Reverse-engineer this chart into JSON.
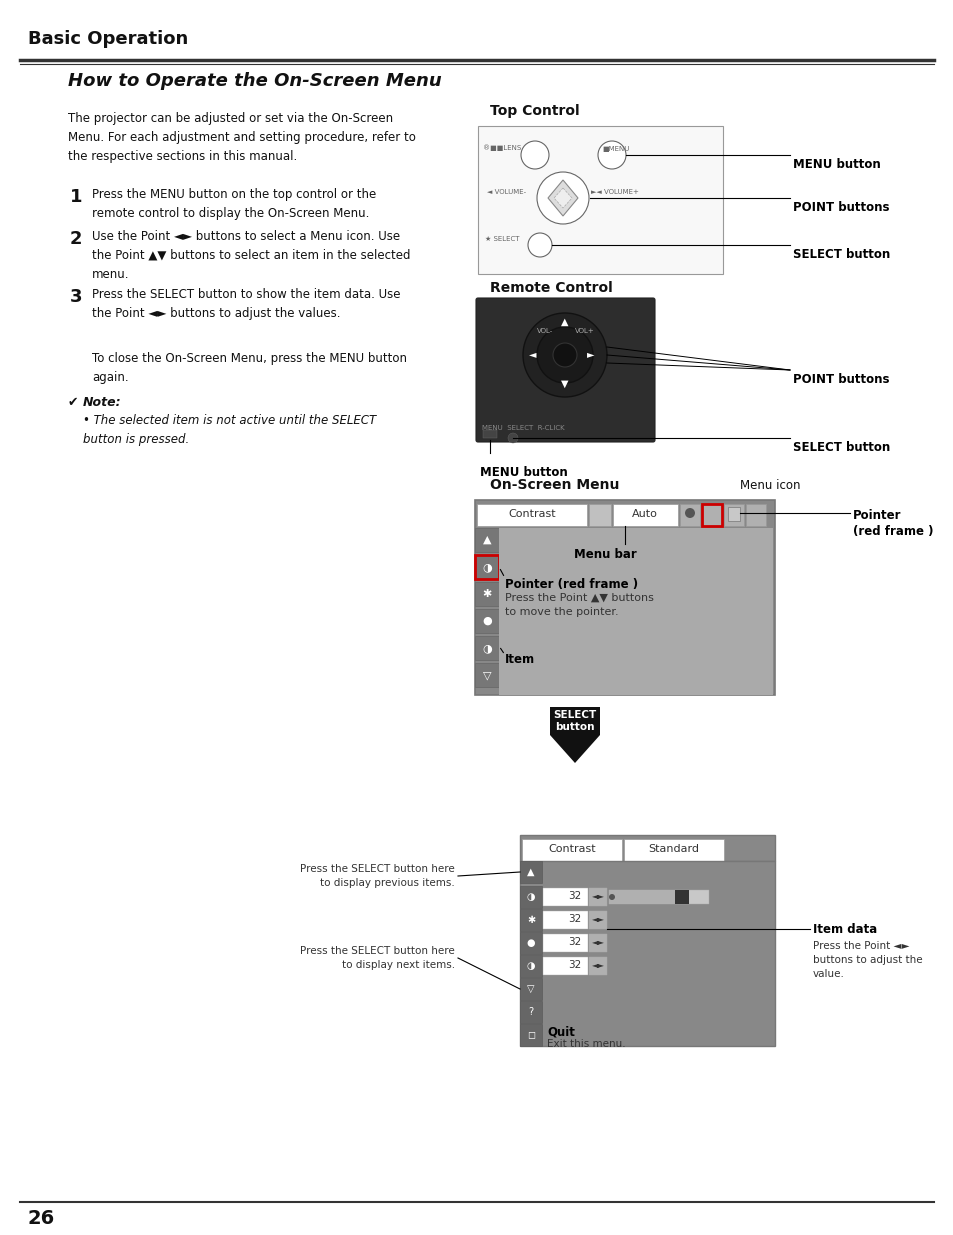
{
  "title": "Basic Operation",
  "subtitle": "How to Operate the On-Screen Menu",
  "bg_color": "#ffffff",
  "text_color": "#000000",
  "body_text": "The projector can be adjusted or set via the On-Screen\nMenu. For each adjustment and setting procedure, refer to\nthe respective sections in this manual.",
  "step1": "Press the MENU button on the top control or the\nremote control to display the On-Screen Menu.",
  "step2": "Use the Point ◄► buttons to select a Menu icon. Use\nthe Point ▲▼ buttons to select an item in the selected\nmenu.",
  "step3": "Press the SELECT button to show the item data. Use\nthe Point ◄► buttons to adjust the values.",
  "close_text": "To close the On-Screen Menu, press the MENU button\nagain.",
  "note_text": "Note:",
  "note_bullet": "The selected item is not active until the SELECT\nbutton is pressed.",
  "top_control_label": "Top Control",
  "remote_control_label": "Remote Control",
  "onscreen_menu_label": "On-Screen Menu",
  "menu_icon_label": "Menu icon",
  "menu_button_label": "MENU button",
  "point_buttons_label": "POINT buttons",
  "select_button_label": "SELECT button",
  "menu_bar_label": "Menu bar",
  "pointer_label": "Pointer\n(red frame )",
  "pointer_red_label": "Pointer (red frame )",
  "pointer_red_sub": "Press the Point ▲▼ buttons\nto move the pointer.",
  "item_label": "Item",
  "select_btn_label": "SELECT\nbutton",
  "item_data_label": "Item data",
  "item_data_sub": "Press the Point ◄►\nbuttons to adjust the\nvalue.",
  "quit_label": "Quit",
  "quit_sub": "Exit this menu.",
  "press_select_prev": "Press the SELECT button here\nto display previous items.",
  "press_select_next": "Press the SELECT button here\nto display next items.",
  "page_number": "26",
  "accent_color": "#cc0000",
  "select_btn_color": "#1a1a1a",
  "gray_color": "#888888",
  "dark_color": "#333333",
  "menu_bg": "#888888",
  "menu_header_bg": "#888888",
  "menu_item_bg": "#ffffff",
  "menu_sidebar_bg": "#666666"
}
